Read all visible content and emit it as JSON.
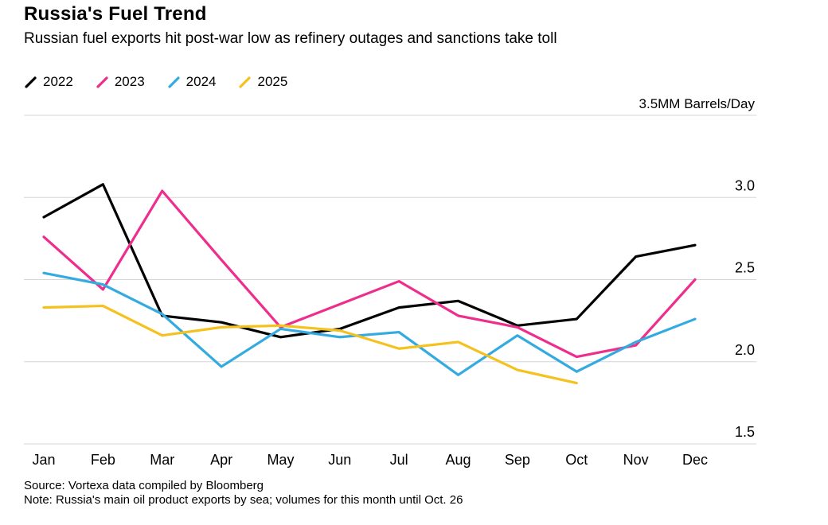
{
  "header": {
    "title": "Russia's Fuel Trend",
    "subtitle": "Russian fuel exports hit post-war low as refinery outages and sanctions take toll"
  },
  "chart_data": {
    "type": "line",
    "unit_label": "3.5MM Barrels/Day",
    "categories": [
      "Jan",
      "Feb",
      "Mar",
      "Apr",
      "May",
      "Jun",
      "Jul",
      "Aug",
      "Sep",
      "Oct",
      "Nov",
      "Dec"
    ],
    "y_axis": {
      "min": 1.5,
      "max": 3.5,
      "gridlines": [
        1.5,
        2.0,
        2.5,
        3.0,
        3.5
      ],
      "tick_labels": [
        {
          "value": 3.0,
          "label": "3.0"
        },
        {
          "value": 2.5,
          "label": "2.5"
        },
        {
          "value": 2.0,
          "label": "2.0"
        },
        {
          "value": 1.5,
          "label": "1.5"
        }
      ]
    },
    "grid_color": "#d6d6d6",
    "series": [
      {
        "name": "2022",
        "color": "#000000",
        "values": [
          2.88,
          3.08,
          2.28,
          2.24,
          2.15,
          2.2,
          2.33,
          2.37,
          2.22,
          2.26,
          2.64,
          2.71
        ]
      },
      {
        "name": "2023",
        "color": "#ee2e8d",
        "values": [
          2.76,
          2.44,
          3.04,
          2.62,
          2.21,
          2.35,
          2.49,
          2.28,
          2.21,
          2.03,
          2.1,
          2.5
        ]
      },
      {
        "name": "2024",
        "color": "#33abe1",
        "values": [
          2.54,
          2.47,
          2.29,
          1.97,
          2.2,
          2.15,
          2.18,
          1.92,
          2.16,
          1.94,
          2.12,
          2.26
        ]
      },
      {
        "name": "2025",
        "color": "#f5c11e",
        "values": [
          2.33,
          2.34,
          2.16,
          2.21,
          2.22,
          2.19,
          2.08,
          2.12,
          1.95,
          1.87,
          null,
          null
        ]
      }
    ]
  },
  "footer": {
    "source": "Source: Vortexa data compiled by Bloomberg",
    "note": "Note: Russia's main oil product exports by sea; volumes for this month until Oct. 26"
  }
}
